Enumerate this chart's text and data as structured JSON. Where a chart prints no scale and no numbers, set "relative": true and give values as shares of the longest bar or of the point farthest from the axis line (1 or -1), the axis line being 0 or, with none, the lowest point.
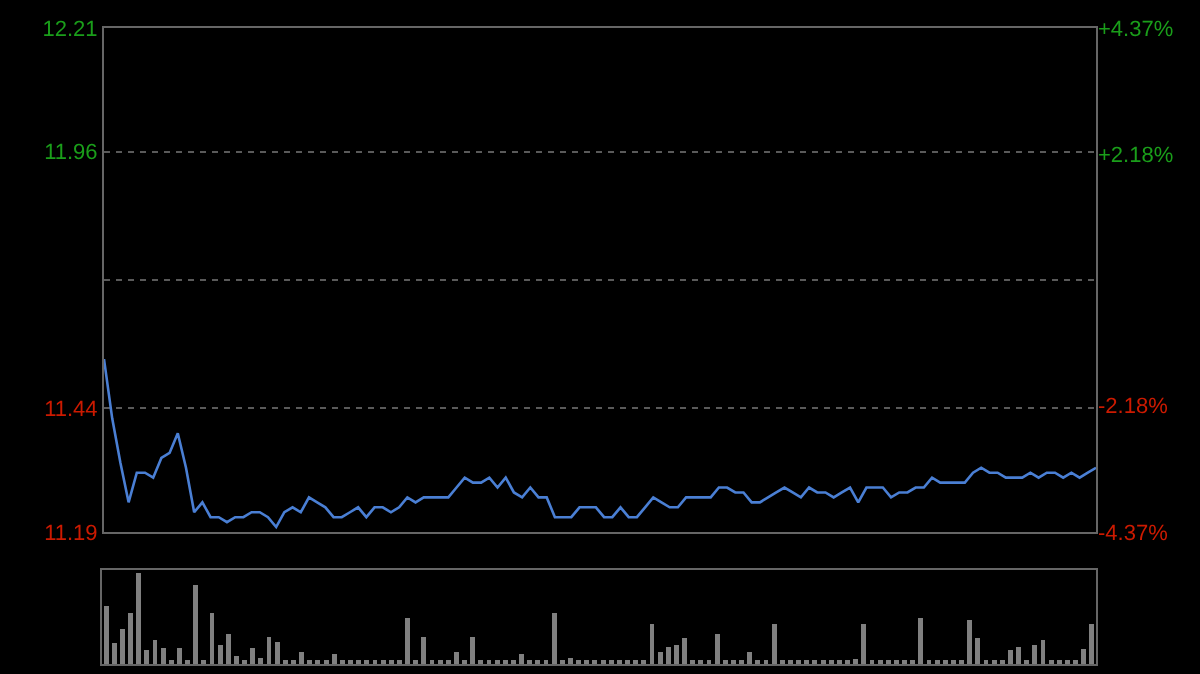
{
  "chart_data": [
    {
      "type": "line",
      "color": "#4a7fd4",
      "marker": "none",
      "line_style": "solid",
      "grid": "y",
      "categories": [
        null,
        null,
        null,
        null,
        null,
        null,
        null,
        null,
        null,
        null,
        null,
        null,
        null,
        null,
        null,
        null,
        null,
        null,
        null,
        null,
        null,
        null,
        null,
        null,
        null,
        null,
        null,
        null,
        null,
        null,
        null,
        null,
        null,
        null,
        null,
        null,
        null,
        null,
        null,
        null,
        null,
        null,
        null,
        null,
        null,
        null,
        null,
        null,
        null,
        null,
        null,
        null,
        null,
        null,
        null,
        null,
        null,
        null,
        null,
        null,
        null,
        null,
        null,
        null,
        null,
        null,
        null,
        null,
        null,
        null,
        null,
        null,
        null,
        null,
        null,
        null,
        null,
        null,
        null,
        null,
        null,
        null,
        null,
        null,
        null,
        null,
        null,
        null,
        null,
        null,
        null,
        null,
        null,
        null,
        null,
        null,
        null,
        null,
        null,
        null,
        null,
        null,
        null,
        null,
        null,
        null,
        null,
        null,
        null,
        null,
        null,
        null,
        null,
        null,
        null,
        null,
        null,
        null,
        null,
        null,
        null,
        null
      ],
      "values": [
        11.54,
        11.42,
        11.33,
        11.25,
        11.31,
        11.31,
        11.3,
        11.34,
        11.35,
        11.39,
        11.32,
        11.23,
        11.25,
        11.22,
        11.22,
        11.21,
        11.22,
        11.22,
        11.23,
        11.23,
        11.22,
        11.2,
        11.23,
        11.24,
        11.23,
        11.26,
        11.25,
        11.24,
        11.22,
        11.22,
        11.23,
        11.24,
        11.22,
        11.24,
        11.24,
        11.23,
        11.24,
        11.26,
        11.25,
        11.26,
        11.26,
        11.26,
        11.26,
        11.28,
        11.3,
        11.29,
        11.29,
        11.3,
        11.28,
        11.3,
        11.27,
        11.26,
        11.28,
        11.26,
        11.26,
        11.22,
        11.22,
        11.22,
        11.24,
        11.24,
        11.24,
        11.22,
        11.22,
        11.24,
        11.22,
        11.22,
        11.24,
        11.26,
        11.25,
        11.24,
        11.24,
        11.26,
        11.26,
        11.26,
        11.26,
        11.28,
        11.28,
        11.27,
        11.27,
        11.25,
        11.25,
        11.26,
        11.27,
        11.28,
        11.27,
        11.26,
        11.28,
        11.27,
        11.27,
        11.26,
        11.27,
        11.28,
        11.25,
        11.28,
        11.28,
        11.28,
        11.26,
        11.27,
        11.27,
        11.28,
        11.28,
        11.3,
        11.29,
        11.29,
        11.29,
        11.29,
        11.31,
        11.32,
        11.31,
        11.31,
        11.3,
        11.3,
        11.3,
        11.31,
        11.3,
        11.31,
        11.31,
        11.3,
        11.31,
        11.3,
        11.31,
        11.32
      ],
      "ylim": [
        11.19,
        12.21
      ],
      "yticks": [
        11.19,
        11.44,
        {
          "value": 11.7,
          "label": null
        },
        11.96,
        12.21
      ],
      "y2lim": [
        -4.37,
        4.37
      ],
      "y2ticks": [
        {
          "value": -4.37,
          "label": "-4.37%"
        },
        {
          "value": -2.18,
          "label": "-2.18%"
        },
        {
          "value": 0,
          "label": null
        },
        {
          "value": 2.18,
          "label": "+2.18%"
        },
        {
          "value": 4.37,
          "label": "+4.37%"
        }
      ],
      "tick_labels": "y"
    },
    {
      "type": "bar",
      "relative": true,
      "color": "#808080",
      "tick_labels": false,
      "categories": [
        null,
        null,
        null,
        null,
        null,
        null,
        null,
        null,
        null,
        null,
        null,
        null,
        null,
        null,
        null,
        null,
        null,
        null,
        null,
        null,
        null,
        null,
        null,
        null,
        null,
        null,
        null,
        null,
        null,
        null,
        null,
        null,
        null,
        null,
        null,
        null,
        null,
        null,
        null,
        null,
        null,
        null,
        null,
        null,
        null,
        null,
        null,
        null,
        null,
        null,
        null,
        null,
        null,
        null,
        null,
        null,
        null,
        null,
        null,
        null,
        null,
        null,
        null,
        null,
        null,
        null,
        null,
        null,
        null,
        null,
        null,
        null,
        null,
        null,
        null,
        null,
        null,
        null,
        null,
        null,
        null,
        null,
        null,
        null,
        null,
        null,
        null,
        null,
        null,
        null,
        null,
        null,
        null,
        null,
        null,
        null,
        null,
        null,
        null,
        null,
        null,
        null,
        null,
        null,
        null,
        null,
        null,
        null,
        null,
        null,
        null,
        null,
        null,
        null,
        null,
        null,
        null,
        null,
        null,
        null,
        null,
        null
      ],
      "values": [
        0.64,
        0.23,
        0.38,
        0.56,
        1,
        0.15,
        0.26,
        0.17,
        0.04,
        0.17,
        0.04,
        0.87,
        0.04,
        0.56,
        0.21,
        0.33,
        0.09,
        0.04,
        0.17,
        0.07,
        0.3,
        0.24,
        0.04,
        0.04,
        0.13,
        0.04,
        0.04,
        0.04,
        0.11,
        0.04,
        0.04,
        0.04,
        0.04,
        0.04,
        0.04,
        0.04,
        0.04,
        0.5,
        0.04,
        0.3,
        0.04,
        0.04,
        0.04,
        0.13,
        0.04,
        0.3,
        0.04,
        0.04,
        0.04,
        0.04,
        0.04,
        0.11,
        0.04,
        0.04,
        0.04,
        0.56,
        0.04,
        0.07,
        0.04,
        0.04,
        0.04,
        0.04,
        0.04,
        0.04,
        0.04,
        0.04,
        0.04,
        0.44,
        0.13,
        0.19,
        0.21,
        0.29,
        0.04,
        0.04,
        0.04,
        0.33,
        0.04,
        0.04,
        0.04,
        0.13,
        0.04,
        0.04,
        0.44,
        0.04,
        0.04,
        0.04,
        0.04,
        0.04,
        0.04,
        0.04,
        0.04,
        0.04,
        0.05,
        0.44,
        0.04,
        0.04,
        0.04,
        0.04,
        0.04,
        0.04,
        0.5,
        0.04,
        0.04,
        0.04,
        0.04,
        0.04,
        0.48,
        0.29,
        0.04,
        0.04,
        0.04,
        0.15,
        0.19,
        0.04,
        0.21,
        0.26,
        0.04,
        0.04,
        0.04,
        0.04,
        0.16,
        0.44
      ]
    }
  ]
}
